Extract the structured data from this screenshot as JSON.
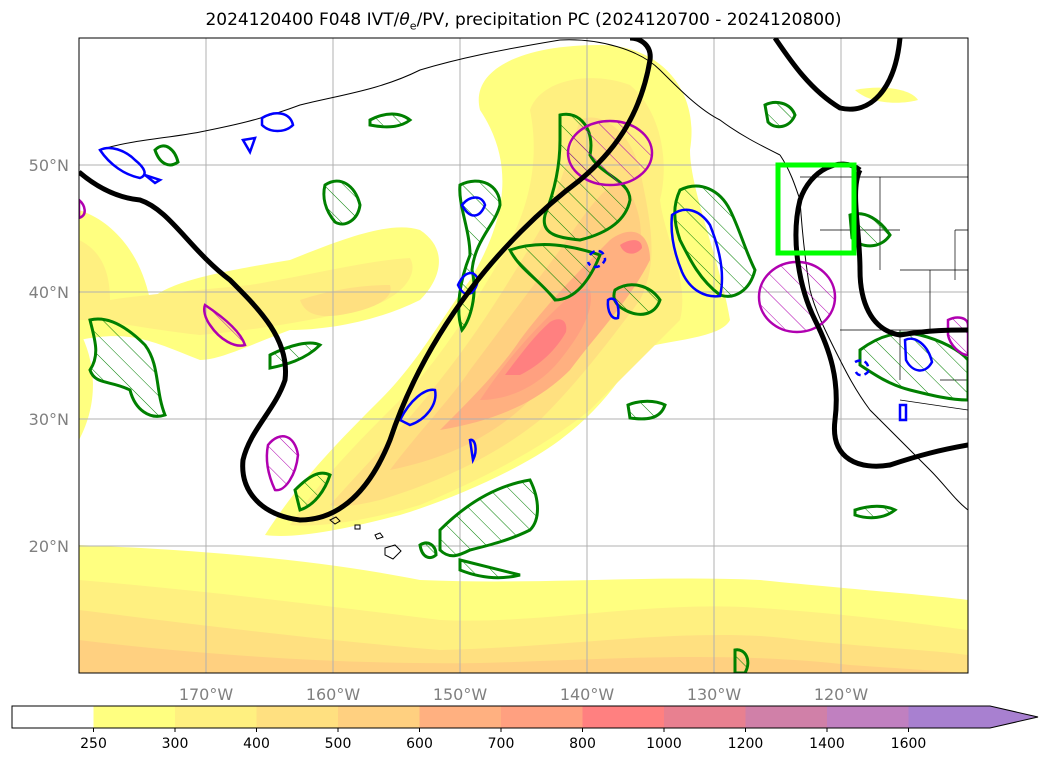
{
  "title_prefix": "2024120400 F048 IVT/",
  "title_theta": "θ",
  "title_sub": "e",
  "title_suffix": "/PV, precipitation PC (2024120700 - 2024120800)",
  "chart_data": {
    "type": "contour-map",
    "map": {
      "lon_range": [
        -180,
        -110
      ],
      "lat_range": [
        10,
        60
      ],
      "grid": true,
      "projection": "PlateCarree"
    },
    "axes": {
      "x_ticks": [
        -170,
        -160,
        -150,
        -140,
        -130,
        -120
      ],
      "x_tick_labels": [
        "170°W",
        "160°W",
        "150°W",
        "140°W",
        "130°W",
        "120°W"
      ],
      "y_ticks": [
        20,
        30,
        40,
        50
      ],
      "y_tick_labels": [
        "20°N",
        "30°N",
        "40°N",
        "50°N"
      ]
    },
    "colorbar": {
      "levels": [
        "250",
        "300",
        "400",
        "500",
        "600",
        "700",
        "800",
        "1000",
        "1200",
        "1400",
        "1600"
      ],
      "colors": [
        "#ffffff",
        "#ffff80",
        "#fff080",
        "#ffe080",
        "#ffd080",
        "#ffb080",
        "#ffa080",
        "#ff8080",
        "#e88090",
        "#d080a8",
        "#c080c0",
        "#a880d0"
      ],
      "extend": "max"
    },
    "box_region": {
      "lon": [
        -125,
        -119
      ],
      "lat": [
        43,
        50
      ],
      "color": "#00ff00"
    }
  }
}
